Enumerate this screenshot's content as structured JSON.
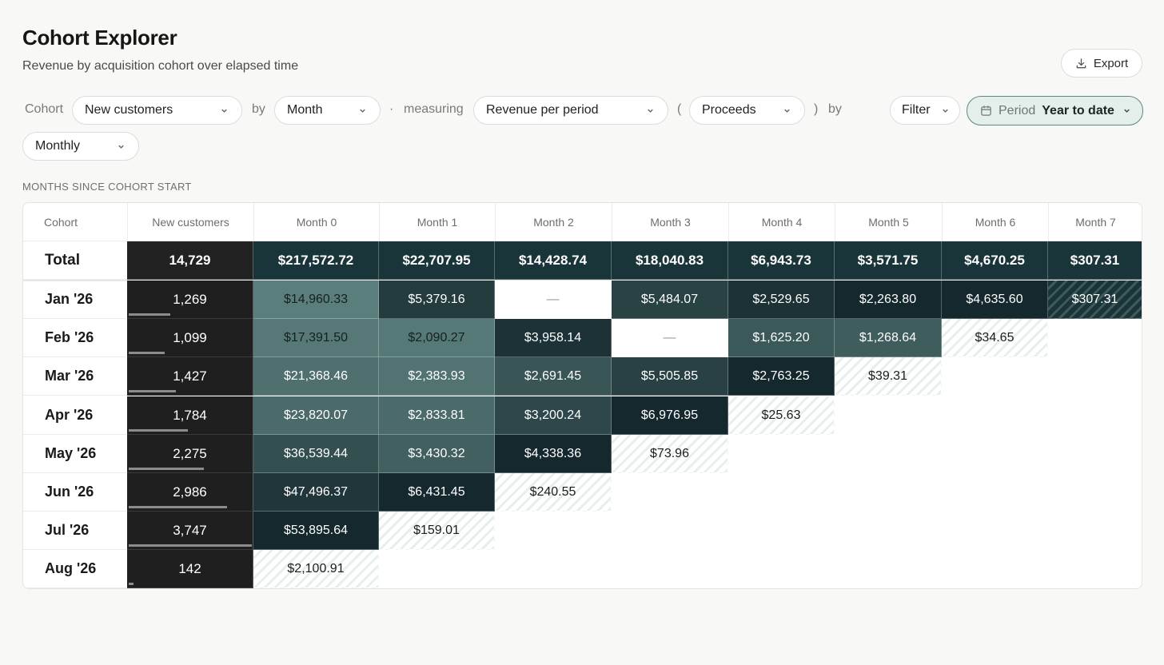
{
  "header": {
    "title": "Cohort Explorer",
    "subtitle": "Revenue by acquisition cohort over elapsed time",
    "export_label": "Export"
  },
  "toolbar": {
    "cohort_label": "Cohort",
    "cohort_value": "New customers",
    "by_label": "by",
    "granularity_value": "Month",
    "dot": "·",
    "measuring_label": "measuring",
    "metric_value": "Revenue per period",
    "open_paren": "(",
    "measure_value": "Proceeds",
    "close_paren": ")",
    "by2_label": "by",
    "filter_label": "Filter",
    "period_label": "Period",
    "period_value": "Year to date",
    "interval_value": "Monthly"
  },
  "section_label": "MONTHS SINCE COHORT START",
  "table": {
    "headers": [
      "Cohort",
      "New customers",
      "Month 0",
      "Month 1",
      "Month 2",
      "Month 3",
      "Month 4",
      "Month 5",
      "Month 6",
      "Month 7"
    ],
    "total": {
      "label": "Total",
      "customers": "14,729",
      "values": [
        "$217,572.72",
        "$22,707.95",
        "$14,428.74",
        "$18,040.83",
        "$6,943.73",
        "$3,571.75",
        "$4,670.25",
        "$307.31"
      ]
    },
    "rows": [
      {
        "label": "Jan '26",
        "customers": "1,269",
        "share": 0.34,
        "values": [
          "$14,960.33",
          "$5,379.16",
          "—",
          "$5,484.07",
          "$2,529.65",
          "$2,263.80",
          "$4,635.60",
          "$307.31"
        ]
      },
      {
        "label": "Feb '26",
        "customers": "1,099",
        "share": 0.29,
        "values": [
          "$17,391.50",
          "$2,090.27",
          "$3,958.14",
          "—",
          "$1,625.20",
          "$1,268.64",
          "$34.65"
        ]
      },
      {
        "label": "Mar '26",
        "customers": "1,427",
        "share": 0.38,
        "values": [
          "$21,368.46",
          "$2,383.93",
          "$2,691.45",
          "$5,505.85",
          "$2,763.25",
          "$39.31"
        ]
      },
      {
        "label": "Apr '26",
        "customers": "1,784",
        "share": 0.48,
        "values": [
          "$23,820.07",
          "$2,833.81",
          "$3,200.24",
          "$6,976.95",
          "$25.63"
        ]
      },
      {
        "label": "May '26",
        "customers": "2,275",
        "share": 0.61,
        "values": [
          "$36,539.44",
          "$3,430.32",
          "$4,338.36",
          "$73.96"
        ]
      },
      {
        "label": "Jun '26",
        "customers": "2,986",
        "share": 0.8,
        "values": [
          "$47,496.37",
          "$6,431.45",
          "$240.55"
        ]
      },
      {
        "label": "Jul '26",
        "customers": "3,747",
        "share": 1.0,
        "values": [
          "$53,895.64",
          "$159.01"
        ]
      },
      {
        "label": "Aug '26",
        "customers": "142",
        "share": 0.04,
        "values": [
          "$2,100.91"
        ]
      }
    ],
    "colors": {
      "scale_light": "#7fada6",
      "scale_dark": "#15282d",
      "total_bg": "#1a3539",
      "customers_bg": "#1f1f1f"
    }
  }
}
